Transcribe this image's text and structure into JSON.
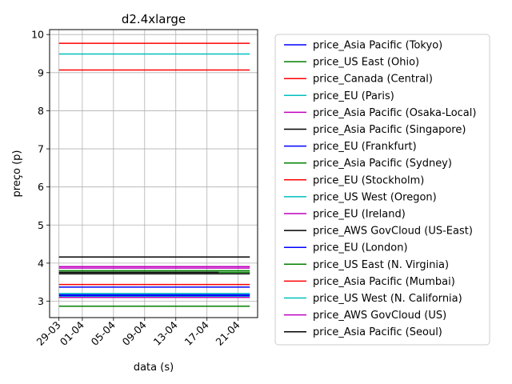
{
  "chart_data": {
    "type": "line",
    "title": "d2.4xlarge",
    "xlabel": "data (s)",
    "ylabel": "preço (p)",
    "x_tick_labels": [
      "29-03",
      "01-04",
      "05-04",
      "09-04",
      "13-04",
      "17-04",
      "21-04"
    ],
    "x_tick_positions": [
      0,
      3,
      7,
      11,
      15,
      19,
      23
    ],
    "x_range": [
      -1.2,
      25.5
    ],
    "y_ticks": [
      3,
      4,
      5,
      6,
      7,
      8,
      9,
      10
    ],
    "ylim": [
      2.57,
      10.13
    ],
    "grid": true,
    "legend_position": "right",
    "series": [
      {
        "name": "price_Asia Pacific (Tokyo)",
        "color": "#0000ff",
        "x": [
          0,
          24.5
        ],
        "values": [
          3.18,
          3.18
        ]
      },
      {
        "name": "price_US East (Ohio)",
        "color": "#008000",
        "x": [
          0,
          24.5
        ],
        "values": [
          2.87,
          2.87
        ]
      },
      {
        "name": "price_Canada (Central)",
        "color": "#ff0000",
        "x": [
          0,
          24.5
        ],
        "values": [
          9.07,
          9.07
        ]
      },
      {
        "name": "price_EU (Paris)",
        "color": "#00bfbf",
        "x": [
          0,
          24.5
        ],
        "values": [
          9.49,
          9.49
        ]
      },
      {
        "name": "price_Asia Pacific (Osaka-Local)",
        "color": "#bf00bf",
        "x": [
          0,
          24.5
        ],
        "values": [
          3.87,
          3.87
        ]
      },
      {
        "name": "price_Asia Pacific (Singapore)",
        "color": "#000000",
        "x": [
          0,
          24.5
        ],
        "values": [
          4.16,
          4.16
        ]
      },
      {
        "name": "price_EU (Frankfurt)",
        "color": "#0000ff",
        "x": [
          0,
          24.5
        ],
        "values": [
          3.37,
          3.37
        ]
      },
      {
        "name": "price_Asia Pacific (Sydney)",
        "color": "#008000",
        "x": [
          0,
          24.5
        ],
        "values": [
          3.8,
          3.8
        ]
      },
      {
        "name": "price_EU (Stockholm)",
        "color": "#ff0000",
        "x": [
          0,
          24.5
        ],
        "values": [
          3.44,
          3.44
        ]
      },
      {
        "name": "price_US West (Oregon)",
        "color": "#00bfbf",
        "x": [
          0,
          24.5
        ],
        "values": [
          3.13,
          3.13
        ]
      },
      {
        "name": "price_EU (Ireland)",
        "color": "#bf00bf",
        "x": [
          0,
          24.5
        ],
        "values": [
          3.91,
          3.91
        ]
      },
      {
        "name": "price_AWS GovCloud (US-East)",
        "color": "#000000",
        "x": [
          0,
          24.5
        ],
        "values": [
          3.72,
          3.72
        ]
      },
      {
        "name": "price_EU (London)",
        "color": "#0000ff",
        "x": [
          0,
          24.5
        ],
        "values": [
          3.15,
          3.15
        ]
      },
      {
        "name": "price_US East (N. Virginia)",
        "color": "#008000",
        "x": [
          0,
          24.5
        ],
        "values": [
          3.76,
          3.76
        ]
      },
      {
        "name": "price_Asia Pacific (Mumbai)",
        "color": "#ff0000",
        "x": [
          0,
          24.5
        ],
        "values": [
          9.77,
          9.77
        ]
      },
      {
        "name": "price_US West (N. California)",
        "color": "#00bfbf",
        "x": [
          0,
          24.5
        ],
        "values": [
          3.2,
          3.2
        ]
      },
      {
        "name": "price_AWS GovCloud (US)",
        "color": "#bf00bf",
        "x": [
          0,
          24.5
        ],
        "values": [
          3.1,
          3.1
        ]
      },
      {
        "name": "price_Asia Pacific (Seoul)",
        "color": "#000000",
        "x": [
          0,
          20.5
        ],
        "values": [
          3.76,
          3.76
        ]
      }
    ]
  }
}
